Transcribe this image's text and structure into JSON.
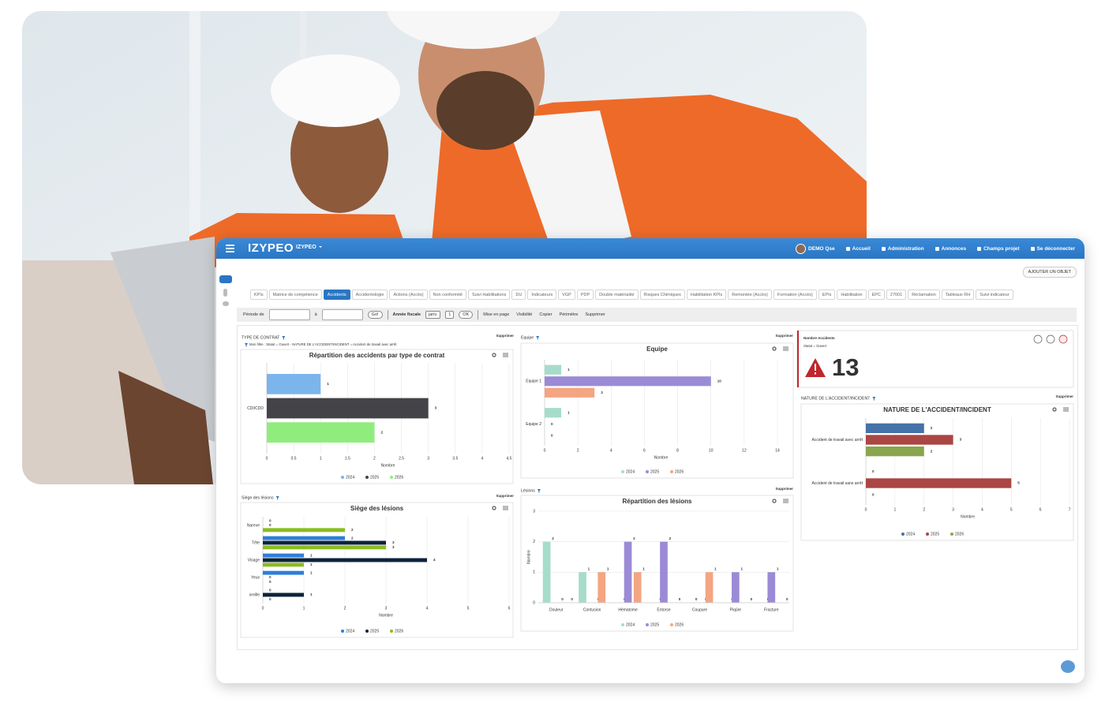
{
  "app": {
    "brand": "IZYPEO",
    "workspace": "IZYPEO",
    "nav": [
      "DEMO Qse",
      "Accueil",
      "Administration",
      "Annonces",
      "Champs projet",
      "Se déconnecter"
    ],
    "add_button": "AJOUTER UN OBJET",
    "tabs": [
      "KPIs",
      "Matrice de compétence",
      "Accidents",
      "Accidentologie",
      "Actions (Accès)",
      "Non conformité",
      "Suivi Habilitations",
      "DU",
      "Indicateurs",
      "VGP",
      "PDP",
      "Double matérialité",
      "Risques Chimiques",
      "Habilitation KPIs",
      "Remontée (Accès)",
      "Formation (Accès)",
      "EPIs",
      "Habilitation",
      "EPC",
      "27001",
      "Réclamation",
      "Tableaux RH",
      "Suivi indicateur"
    ],
    "active_tab": 2,
    "filters": {
      "period_label": "Période de",
      "to_label": "à",
      "go": "Go!",
      "fiscal_year": "Année fiscale",
      "month": "janv.",
      "day": "1",
      "ok": "OK",
      "actions": [
        "Mise en page",
        "Visibilité",
        "Copier",
        "Périmètre",
        "Supprimer"
      ]
    },
    "widgets": [
      {
        "header": "TYPE DE CONTRAT",
        "delete": "Supprimer",
        "filter_note": "Mon filtre : Statut = Ouvert - NATURE DE L'ACCIDENT/INCIDENT = Accident de travail avec arrêt"
      },
      {
        "header": "Equipe",
        "delete": "Supprimer"
      },
      {
        "header": "Siège des lésions",
        "delete": "Supprimer"
      },
      {
        "header": "Lésions",
        "delete": "Supprimer"
      },
      {
        "header": "NATURE DE L'ACCIDENT/INCIDENT",
        "delete": "Supprimer"
      }
    ],
    "kpi": {
      "title": "Nombre Accidents",
      "filter": "Statut = Ouvert",
      "value": 13
    }
  },
  "chart_data": [
    {
      "type": "barh",
      "title": "Répartition des accidents par type de contrat",
      "categories": [
        "CDI/CDD"
      ],
      "series": [
        {
          "name": "2024",
          "color": "#7cb5ec",
          "values": [
            1
          ]
        },
        {
          "name": "2025",
          "color": "#434348",
          "values": [
            3
          ]
        },
        {
          "name": "2026",
          "color": "#90ed7d",
          "values": [
            2
          ]
        }
      ],
      "xlabel": "Nombre",
      "xlim": [
        0,
        4.5
      ],
      "xticks": [
        0,
        0.5,
        1,
        1.5,
        2,
        2.5,
        3,
        3.5,
        4,
        4.5
      ],
      "grid": true
    },
    {
      "type": "barh",
      "title": "Equipe",
      "categories": [
        "Equipe 1",
        "Equipe 2"
      ],
      "series": [
        {
          "name": "2024",
          "color": "#a6dccb",
          "values": [
            1,
            1
          ]
        },
        {
          "name": "2025",
          "color": "#9b8bd6",
          "values": [
            10,
            0
          ]
        },
        {
          "name": "2026",
          "color": "#f4a582",
          "values": [
            3,
            0
          ]
        }
      ],
      "xlabel": "Nombre",
      "xlim": [
        0,
        14
      ],
      "xticks": [
        0,
        2,
        4,
        6,
        8,
        10,
        12,
        14
      ],
      "grid": true
    },
    {
      "type": "barh",
      "title": "Siège des lésions",
      "categories": [
        "Nareve",
        "Tête",
        "Visage",
        "Yeux",
        "oreille"
      ],
      "series": [
        {
          "name": "2024",
          "color": "#2f7ed8",
          "values": [
            0,
            2,
            1,
            1,
            0
          ]
        },
        {
          "name": "2025",
          "color": "#0d233a",
          "values": [
            0,
            3,
            4,
            0,
            1
          ]
        },
        {
          "name": "2026",
          "color": "#8bbc21",
          "values": [
            2,
            3,
            1,
            0,
            0
          ]
        }
      ],
      "xlabel": "Nombre",
      "xlim": [
        0,
        6
      ],
      "xticks": [
        0,
        1,
        2,
        3,
        4,
        5,
        6
      ],
      "grid": true
    },
    {
      "type": "bar",
      "title": "Répartition des lésions",
      "categories": [
        "Douleur",
        "Contusion",
        "Hématome",
        "Entorse",
        "Coupure",
        "Piqûre",
        "Fracture"
      ],
      "series": [
        {
          "name": "2024",
          "color": "#a6dccb",
          "values": [
            2,
            1,
            0,
            0,
            0,
            0,
            0
          ]
        },
        {
          "name": "2025",
          "color": "#9b8bd6",
          "values": [
            0,
            0,
            2,
            2,
            0,
            1,
            1
          ]
        },
        {
          "name": "2026",
          "color": "#f4a582",
          "values": [
            0,
            1,
            1,
            0,
            1,
            0,
            0
          ]
        }
      ],
      "ylabel": "Nombre",
      "ylim": [
        0,
        3
      ],
      "yticks": [
        0,
        1,
        2,
        3
      ],
      "grid": true
    },
    {
      "type": "barh",
      "title": "NATURE DE L'ACCIDENT/INCIDENT",
      "categories": [
        "Accident de travail avec arrêt",
        "Accident de travail sans arrêt"
      ],
      "series": [
        {
          "name": "2024",
          "color": "#4572a7",
          "values": [
            2,
            0
          ]
        },
        {
          "name": "2025",
          "color": "#aa4643",
          "values": [
            3,
            5
          ]
        },
        {
          "name": "2026",
          "color": "#89a54e",
          "values": [
            2,
            0
          ]
        }
      ],
      "xlabel": "Nombre",
      "xlim": [
        0,
        7
      ],
      "xticks": [
        0,
        1,
        2,
        3,
        4,
        5,
        6,
        7
      ],
      "grid": true
    }
  ]
}
